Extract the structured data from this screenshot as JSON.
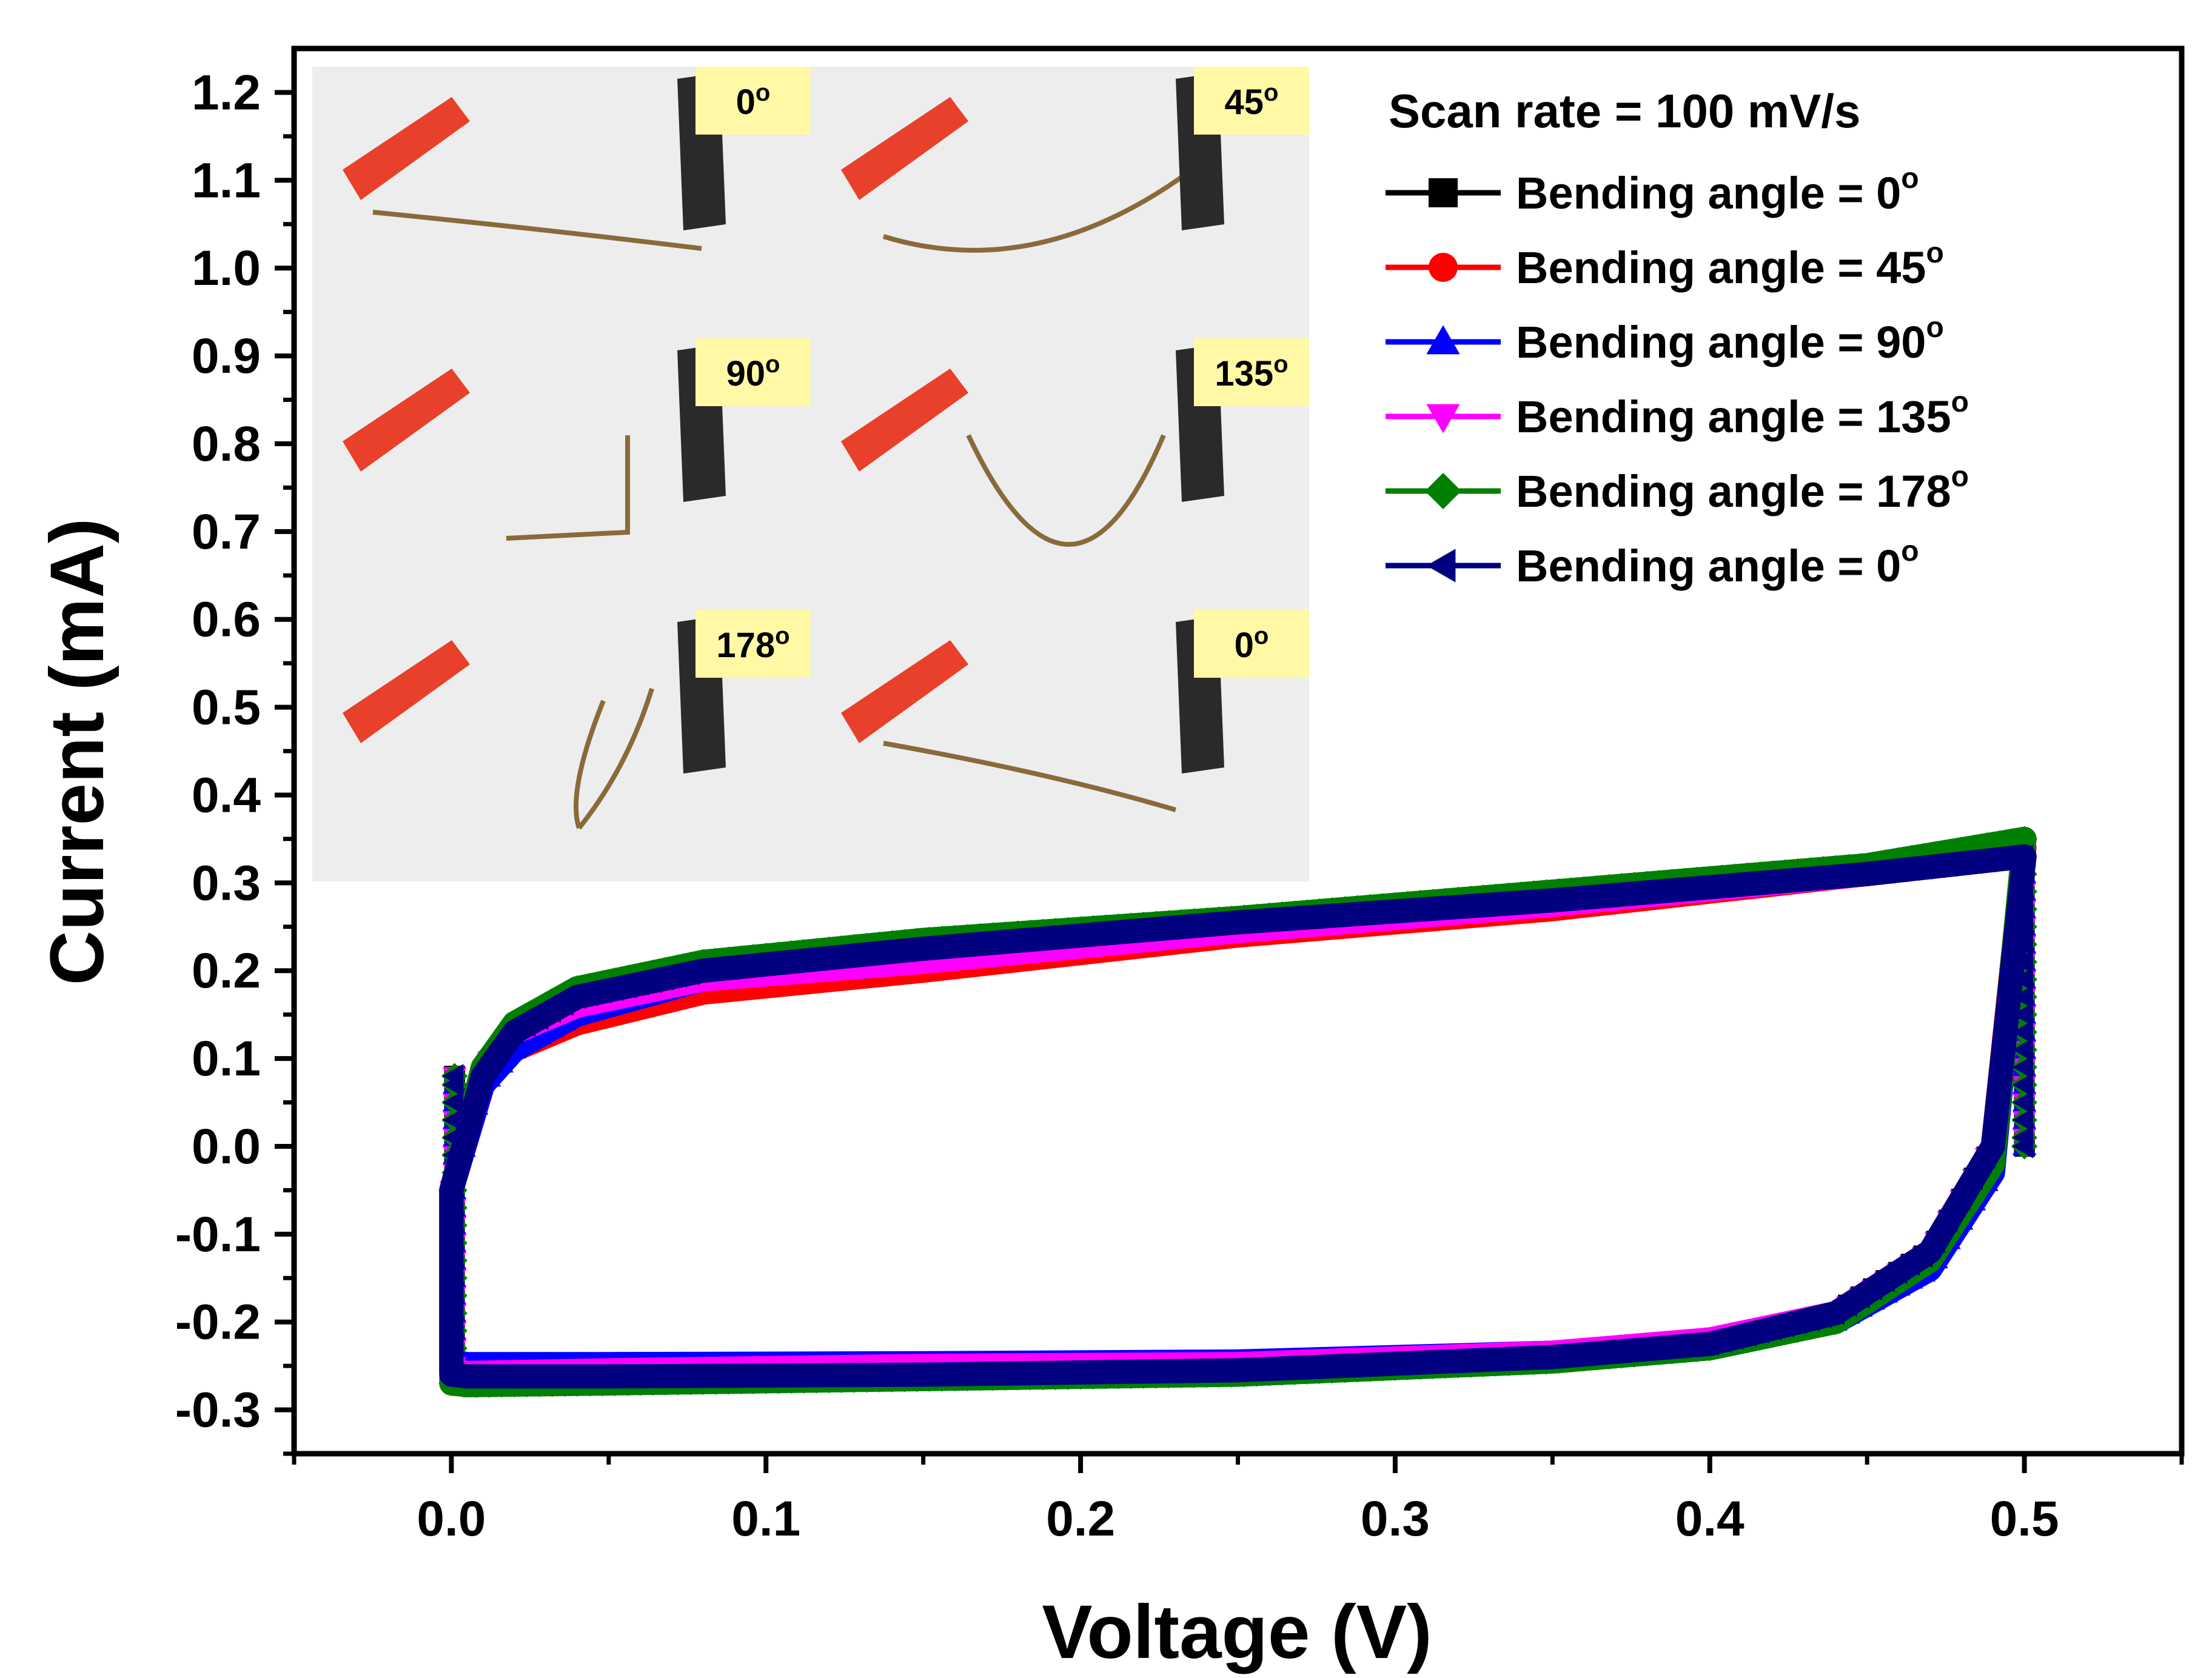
{
  "chart_data": {
    "type": "line",
    "title": "",
    "xlabel": "Voltage (V)",
    "ylabel": "Current (mA)",
    "xlim": [
      -0.05,
      0.55
    ],
    "ylim": [
      -0.35,
      1.25
    ],
    "xticks": [
      0.0,
      0.1,
      0.2,
      0.3,
      0.4,
      0.5
    ],
    "xtick_labels": [
      "0.0",
      "0.1",
      "0.2",
      "0.3",
      "0.4",
      "0.5"
    ],
    "yticks": [
      -0.3,
      -0.2,
      -0.1,
      0.0,
      0.1,
      0.2,
      0.3,
      0.4,
      0.5,
      0.6,
      0.7,
      0.8,
      0.9,
      1.0,
      1.1,
      1.2
    ],
    "ytick_labels": [
      "-0.3",
      "-0.2",
      "-0.1",
      "0.0",
      "0.1",
      "0.2",
      "0.3",
      "0.4",
      "0.5",
      "0.6",
      "0.7",
      "0.8",
      "0.9",
      "1.0",
      "1.1",
      "1.2"
    ],
    "legend_title": "Scan rate = 100 mV/s",
    "legend_position": "top-right",
    "grid": false,
    "series": [
      {
        "name": "Bending angle = 0°",
        "label_prefix": "Bending angle = 0",
        "color": "#000000",
        "marker": "square",
        "upper_v": [
          0.0,
          0.01,
          0.02,
          0.04,
          0.08,
          0.15,
          0.25,
          0.35,
          0.45,
          0.5
        ],
        "upper_i": [
          -0.05,
          0.08,
          0.12,
          0.16,
          0.2,
          0.225,
          0.255,
          0.28,
          0.31,
          0.33
        ],
        "lower_v": [
          0.0,
          0.005,
          0.05,
          0.15,
          0.25,
          0.35,
          0.4,
          0.44,
          0.47,
          0.49,
          0.5
        ],
        "lower_i": [
          -0.26,
          -0.262,
          -0.262,
          -0.26,
          -0.255,
          -0.24,
          -0.225,
          -0.19,
          -0.12,
          0.0,
          0.33
        ]
      },
      {
        "name": "Bending angle = 45°",
        "label_prefix": "Bending angle = 45",
        "color": "#ff0000",
        "marker": "circle",
        "upper_v": [
          0.0,
          0.01,
          0.02,
          0.04,
          0.08,
          0.15,
          0.25,
          0.35,
          0.45,
          0.5
        ],
        "upper_i": [
          -0.05,
          0.07,
          0.11,
          0.14,
          0.175,
          0.2,
          0.24,
          0.27,
          0.31,
          0.34
        ],
        "lower_v": [
          0.0,
          0.005,
          0.05,
          0.15,
          0.25,
          0.35,
          0.4,
          0.44,
          0.47,
          0.49,
          0.5
        ],
        "lower_i": [
          -0.255,
          -0.258,
          -0.258,
          -0.255,
          -0.25,
          -0.235,
          -0.22,
          -0.19,
          -0.12,
          0.0,
          0.34
        ]
      },
      {
        "name": "Bending angle = 90°",
        "label_prefix": "Bending angle = 90",
        "color": "#0000ff",
        "marker": "triangle-up",
        "upper_v": [
          0.0,
          0.01,
          0.02,
          0.04,
          0.08,
          0.15,
          0.25,
          0.35,
          0.45,
          0.5
        ],
        "upper_i": [
          -0.05,
          0.07,
          0.11,
          0.15,
          0.19,
          0.22,
          0.25,
          0.28,
          0.32,
          0.35
        ],
        "lower_v": [
          0.0,
          0.005,
          0.05,
          0.15,
          0.25,
          0.35,
          0.4,
          0.44,
          0.47,
          0.49,
          0.5
        ],
        "lower_i": [
          -0.245,
          -0.248,
          -0.248,
          -0.247,
          -0.245,
          -0.235,
          -0.22,
          -0.2,
          -0.14,
          -0.03,
          0.35
        ]
      },
      {
        "name": "Bending angle = 135°",
        "label_prefix": "Bending angle = 135",
        "color": "#ff00ff",
        "marker": "triangle-down",
        "upper_v": [
          0.0,
          0.01,
          0.02,
          0.04,
          0.08,
          0.15,
          0.25,
          0.35,
          0.45,
          0.5
        ],
        "upper_i": [
          -0.05,
          0.09,
          0.13,
          0.16,
          0.19,
          0.21,
          0.245,
          0.275,
          0.31,
          0.33
        ],
        "lower_v": [
          0.0,
          0.005,
          0.05,
          0.15,
          0.25,
          0.35,
          0.4,
          0.44,
          0.47,
          0.49,
          0.5
        ],
        "lower_i": [
          -0.255,
          -0.258,
          -0.255,
          -0.25,
          -0.248,
          -0.235,
          -0.22,
          -0.19,
          -0.12,
          0.0,
          0.33
        ]
      },
      {
        "name": "Bending angle = 178°",
        "label_prefix": "Bending angle = 178",
        "color": "#008000",
        "marker": "diamond",
        "upper_v": [
          0.0,
          0.01,
          0.02,
          0.04,
          0.08,
          0.15,
          0.25,
          0.35,
          0.45,
          0.5
        ],
        "upper_i": [
          -0.05,
          0.09,
          0.14,
          0.18,
          0.21,
          0.235,
          0.26,
          0.29,
          0.32,
          0.35
        ],
        "lower_v": [
          0.0,
          0.005,
          0.05,
          0.15,
          0.25,
          0.35,
          0.4,
          0.44,
          0.47,
          0.49,
          0.5
        ],
        "lower_i": [
          -0.27,
          -0.272,
          -0.27,
          -0.265,
          -0.26,
          -0.245,
          -0.23,
          -0.2,
          -0.13,
          -0.02,
          0.35
        ]
      },
      {
        "name": "Bending angle = 0°",
        "label_prefix": "Bending angle = 0",
        "color": "#000080",
        "marker": "triangle-left",
        "upper_v": [
          0.0,
          0.01,
          0.02,
          0.04,
          0.08,
          0.15,
          0.25,
          0.35,
          0.45,
          0.5
        ],
        "upper_i": [
          -0.05,
          0.08,
          0.13,
          0.17,
          0.2,
          0.225,
          0.255,
          0.28,
          0.31,
          0.33
        ],
        "lower_v": [
          0.0,
          0.005,
          0.05,
          0.15,
          0.25,
          0.35,
          0.4,
          0.44,
          0.47,
          0.49,
          0.5
        ],
        "lower_i": [
          -0.26,
          -0.262,
          -0.262,
          -0.26,
          -0.255,
          -0.24,
          -0.225,
          -0.19,
          -0.12,
          0.0,
          0.33
        ]
      }
    ],
    "inset_photos": [
      {
        "label": "0°",
        "label_prefix": "0",
        "wire": "flat"
      },
      {
        "label": "45°",
        "label_prefix": "45",
        "wire": "sag"
      },
      {
        "label": "90°",
        "label_prefix": "90",
        "wire": "right-angle"
      },
      {
        "label": "135°",
        "label_prefix": "135",
        "wire": "deep-v"
      },
      {
        "label": "178°",
        "label_prefix": "178",
        "wire": "folded"
      },
      {
        "label": "0°",
        "label_prefix": "0",
        "wire": "flat-recovered"
      }
    ]
  },
  "colors": {
    "photo_label_bg": "#fff9a6",
    "photo_bg": "#ededed",
    "clip_red": "#e8402a",
    "clip_black": "#2a2a2a",
    "wire": "#8a6a3a"
  }
}
